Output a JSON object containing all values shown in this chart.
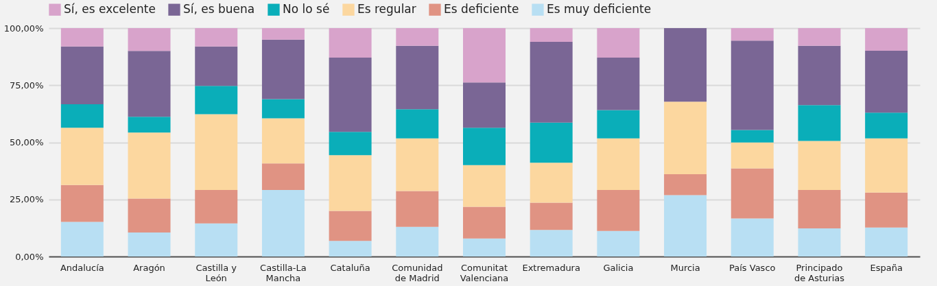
{
  "chart_data": {
    "type": "bar",
    "stacked": true,
    "categories": [
      "Andalucía",
      "Aragón",
      "Castilla y León",
      "Castilla-La Mancha",
      "Cataluña",
      "Comunidad de Madrid",
      "Comunitat Valenciana",
      "Extremadura",
      "Galicia",
      "Murcia",
      "País Vasco",
      "Principado de Asturias",
      "España"
    ],
    "series": [
      {
        "name": "Es muy deficiente",
        "color": "#b8dff3",
        "values": [
          15.2,
          10.5,
          14.5,
          29.1,
          6.8,
          13.0,
          7.9,
          11.6,
          11.2,
          26.9,
          16.7,
          12.3,
          12.7
        ]
      },
      {
        "name": "Es deficiente",
        "color": "#e09383",
        "values": [
          16.1,
          14.9,
          14.6,
          11.7,
          13.2,
          15.7,
          13.9,
          12.0,
          17.9,
          9.1,
          21.9,
          16.8,
          15.3
        ]
      },
      {
        "name": "Es regular",
        "color": "#fcd79f",
        "values": [
          25.1,
          28.9,
          33.2,
          19.7,
          24.4,
          23.0,
          18.2,
          17.5,
          22.6,
          31.8,
          11.3,
          21.5,
          23.7
        ]
      },
      {
        "name": "No lo sé",
        "color": "#0aaeb9",
        "values": [
          10.3,
          6.9,
          12.4,
          8.4,
          10.2,
          12.8,
          16.4,
          17.5,
          12.4,
          0,
          5.5,
          15.7,
          11.3
        ]
      },
      {
        "name": "Sí, es buena",
        "color": "#7a6695",
        "values": [
          25.3,
          28.8,
          17.3,
          26.1,
          32.5,
          27.8,
          19.8,
          35.4,
          23.0,
          32.2,
          39.1,
          26.0,
          27.1
        ]
      },
      {
        "name": "Sí, es excelente",
        "color": "#d8a3cb",
        "values": [
          8.0,
          10.0,
          8.0,
          5.0,
          12.9,
          7.7,
          23.8,
          6.0,
          12.9,
          0,
          5.5,
          7.7,
          9.9
        ]
      }
    ],
    "ylim": [
      0,
      100
    ],
    "yticks": [
      {
        "value": 0,
        "label": "0,00%"
      },
      {
        "value": 25,
        "label": "25,00%"
      },
      {
        "value": 50,
        "label": "50,00%"
      },
      {
        "value": 75,
        "label": "75,00%"
      },
      {
        "value": 100,
        "label": "100,00%"
      }
    ],
    "grid": "y",
    "legend": "top"
  }
}
